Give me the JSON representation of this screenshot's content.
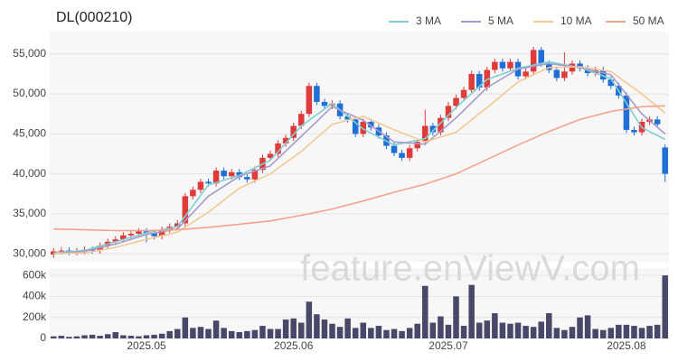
{
  "chart_data": [
    {
      "type": "candlestick",
      "title": "DL(000210)",
      "categories": [
        null,
        null,
        null,
        null,
        null,
        null,
        null,
        null,
        null,
        null,
        null,
        null,
        "2025.05",
        null,
        null,
        null,
        null,
        null,
        null,
        null,
        null,
        null,
        null,
        null,
        null,
        null,
        null,
        null,
        null,
        null,
        null,
        "2025.06",
        null,
        null,
        null,
        null,
        null,
        null,
        null,
        null,
        null,
        null,
        null,
        null,
        null,
        null,
        null,
        null,
        null,
        null,
        null,
        "2025.07",
        null,
        null,
        null,
        null,
        null,
        null,
        null,
        null,
        null,
        null,
        null,
        null,
        null,
        null,
        null,
        null,
        null,
        null,
        null,
        null,
        null,
        null,
        "2025.08",
        null,
        null,
        null,
        null,
        null
      ],
      "open": [
        29900,
        30300,
        30400,
        30200,
        30300,
        30500,
        30400,
        31000,
        31500,
        31800,
        32300,
        32500,
        32800,
        32600,
        32200,
        33000,
        33400,
        33800,
        37200,
        38000,
        39000,
        38800,
        40400,
        39700,
        40200,
        39600,
        39300,
        40500,
        42000,
        42500,
        43800,
        44500,
        46000,
        47500,
        51000,
        49000,
        48500,
        48800,
        47200,
        46800,
        45000,
        46500,
        45800,
        44800,
        43500,
        42600,
        42000,
        43200,
        44000,
        46000,
        45200,
        47000,
        48500,
        49500,
        50500,
        52500,
        50800,
        53000,
        54000,
        53200,
        54000,
        52200,
        52800,
        55500,
        53800,
        53000,
        52000,
        52800,
        53800,
        53200,
        52600,
        53000,
        51800,
        51000,
        49800,
        45500,
        45200,
        46500,
        46800,
        43300
      ],
      "high": [
        30700,
        30800,
        30800,
        30700,
        30900,
        30900,
        31400,
        31900,
        32200,
        32700,
        32900,
        33200,
        33200,
        33000,
        33400,
        33800,
        34200,
        37600,
        38400,
        39400,
        39400,
        40800,
        40800,
        40600,
        40600,
        40000,
        40900,
        42400,
        42900,
        44200,
        44900,
        46400,
        47900,
        51400,
        51400,
        49400,
        49200,
        49200,
        47600,
        47200,
        46900,
        46900,
        46200,
        45200,
        43900,
        43000,
        43600,
        44400,
        48000,
        46400,
        47400,
        49000,
        49900,
        50900,
        52900,
        52900,
        53400,
        54400,
        54400,
        54400,
        54400,
        53200,
        55900,
        55900,
        54200,
        53400,
        55200,
        54200,
        54200,
        53600,
        53400,
        53400,
        52200,
        51400,
        50200,
        45900,
        46900,
        47200,
        47200,
        43700
      ],
      "low": [
        29500,
        29900,
        29800,
        29800,
        29900,
        30000,
        30000,
        30600,
        31100,
        31400,
        31900,
        32100,
        31400,
        31800,
        31800,
        32600,
        33000,
        33400,
        36800,
        37600,
        38400,
        38400,
        39300,
        39300,
        39200,
        38900,
        38900,
        40100,
        41600,
        42100,
        43400,
        44100,
        45600,
        47100,
        48600,
        48100,
        48100,
        46800,
        46400,
        44600,
        44600,
        45400,
        44400,
        43100,
        42200,
        41600,
        41600,
        42800,
        43600,
        44800,
        44800,
        46600,
        48100,
        49100,
        50100,
        50400,
        50400,
        52600,
        52800,
        52800,
        51800,
        51800,
        52400,
        53400,
        52600,
        51600,
        51600,
        52400,
        52800,
        52200,
        52200,
        51400,
        50600,
        49400,
        45100,
        44800,
        44800,
        46100,
        45800,
        39000
      ],
      "close": [
        30300,
        30400,
        30200,
        30300,
        30500,
        30400,
        31000,
        31500,
        31800,
        32300,
        32500,
        32800,
        32600,
        32200,
        33000,
        33400,
        33800,
        37200,
        38000,
        39000,
        38800,
        40400,
        39700,
        40200,
        39600,
        39300,
        40500,
        42000,
        42500,
        43800,
        44500,
        46000,
        47500,
        51000,
        49000,
        48500,
        48800,
        47200,
        46800,
        45000,
        46500,
        45800,
        44800,
        43500,
        42600,
        42000,
        43200,
        44000,
        46000,
        45200,
        47000,
        48500,
        49500,
        50500,
        52500,
        50800,
        53000,
        54000,
        53200,
        54000,
        52200,
        52800,
        55500,
        53800,
        53000,
        52000,
        52800,
        53800,
        53200,
        52600,
        53000,
        51800,
        51000,
        49800,
        45500,
        45200,
        46500,
        46800,
        46200,
        40000
      ],
      "up_color": "#e03a3a",
      "down_color": "#1f6fd6",
      "series": [
        {
          "name": "3 MA",
          "color": "#7fcfd0",
          "x": [
            0,
            4,
            8,
            12,
            16,
            20,
            24,
            28,
            32,
            36,
            40,
            44,
            48,
            52,
            56,
            60,
            64,
            68,
            72,
            76,
            79
          ],
          "values": [
            30100,
            30400,
            31500,
            32600,
            33400,
            38600,
            39800,
            41700,
            46000,
            48800,
            45600,
            43600,
            44400,
            48300,
            51800,
            53200,
            54000,
            53300,
            51900,
            45800,
            44300
          ]
        },
        {
          "name": "5 MA",
          "color": "#a89bcb",
          "x": [
            0,
            4,
            8,
            12,
            16,
            20,
            24,
            28,
            32,
            36,
            40,
            44,
            48,
            52,
            56,
            60,
            64,
            68,
            72,
            76,
            79
          ],
          "values": [
            30000,
            30300,
            31200,
            32400,
            33100,
            37200,
            39700,
            41000,
            44700,
            48400,
            46700,
            44000,
            43700,
            47000,
            50800,
            53100,
            53800,
            53300,
            52400,
            47500,
            45000
          ]
        },
        {
          "name": "10 MA",
          "color": "#f1c994",
          "x": [
            0,
            4,
            8,
            12,
            16,
            20,
            24,
            28,
            32,
            36,
            40,
            44,
            48,
            52,
            56,
            60,
            64,
            68,
            72,
            76,
            79
          ],
          "values": [
            30000,
            30100,
            30800,
            31800,
            32700,
            35200,
            38200,
            40000,
            42800,
            46200,
            47200,
            45500,
            44000,
            45200,
            48300,
            51500,
            53300,
            53400,
            52800,
            50000,
            47600
          ]
        },
        {
          "name": "50 MA",
          "color": "#f4a28c",
          "x": [
            0,
            4,
            8,
            12,
            16,
            20,
            24,
            28,
            32,
            36,
            40,
            44,
            48,
            52,
            56,
            60,
            64,
            68,
            72,
            76,
            79
          ],
          "values": [
            33100,
            33000,
            32900,
            32900,
            33000,
            33300,
            33700,
            34100,
            34800,
            35600,
            36600,
            37700,
            38700,
            40000,
            41800,
            43600,
            45300,
            46800,
            47800,
            48400,
            48500
          ]
        }
      ],
      "ylim": [
        29000,
        57800
      ],
      "yticks": [
        {
          "value": 30000,
          "label": "30,000"
        },
        {
          "value": 35000,
          "label": "35,000"
        },
        {
          "value": 40000,
          "label": "40,000"
        },
        {
          "value": 45000,
          "label": "45,000"
        },
        {
          "value": 50000,
          "label": "50,000"
        },
        {
          "value": 55000,
          "label": "55,000"
        }
      ],
      "grid": true,
      "legend": "top-right"
    },
    {
      "type": "bar",
      "color": "#484868",
      "values": [
        20000,
        25000,
        15000,
        20000,
        30000,
        35000,
        25000,
        40000,
        60000,
        30000,
        25000,
        20000,
        30000,
        35000,
        45000,
        70000,
        90000,
        200000,
        100000,
        110000,
        90000,
        170000,
        100000,
        70000,
        60000,
        70000,
        80000,
        120000,
        90000,
        90000,
        180000,
        190000,
        150000,
        350000,
        230000,
        180000,
        140000,
        110000,
        190000,
        100000,
        150000,
        100000,
        120000,
        80000,
        90000,
        70000,
        100000,
        140000,
        500000,
        150000,
        210000,
        130000,
        400000,
        120000,
        510000,
        150000,
        170000,
        240000,
        150000,
        140000,
        150000,
        120000,
        110000,
        160000,
        240000,
        100000,
        80000,
        110000,
        200000,
        220000,
        90000,
        80000,
        100000,
        130000,
        130000,
        120000,
        100000,
        120000,
        130000,
        600000
      ],
      "ylim": [
        0,
        670000
      ],
      "yticks": [
        0,
        {
          "value": 200000,
          "label": "200k"
        },
        {
          "value": 400000,
          "label": "400k"
        },
        {
          "value": 600000,
          "label": "600k"
        }
      ],
      "grid": true
    }
  ],
  "watermark": "feature.enViewV.com"
}
